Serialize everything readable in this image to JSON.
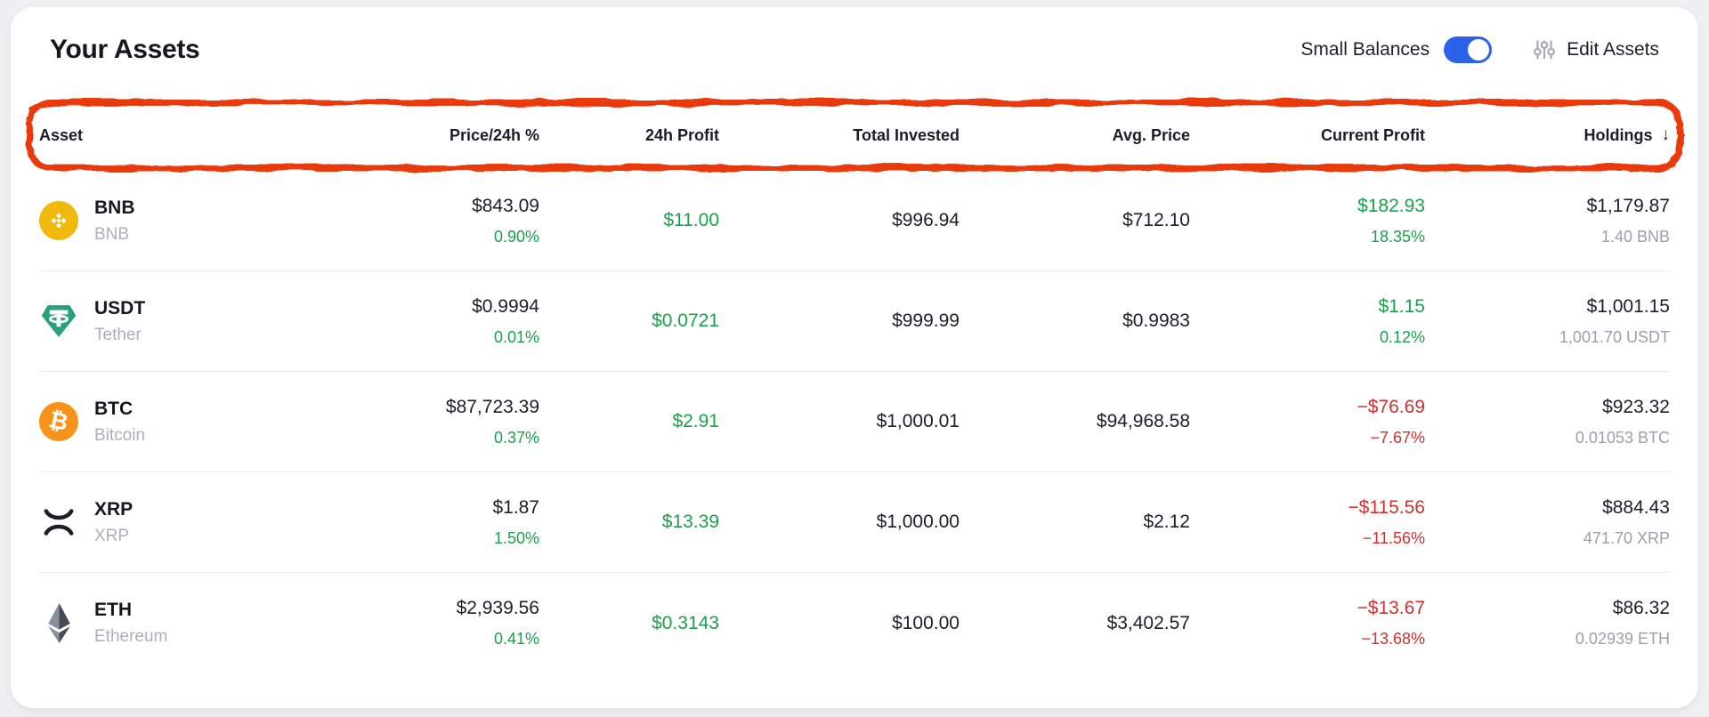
{
  "colors": {
    "green": "#17a34a",
    "red": "#d32f2f",
    "toggle_blue": "#2b63e8",
    "annotation_red": "#ea3a0e",
    "bnb_yellow": "#f0b90b",
    "usdt_teal": "#26a17b",
    "btc_orange": "#f7931a",
    "page_bg": "#eef0f2",
    "card_bg": "#ffffff"
  },
  "header": {
    "title": "Your Assets",
    "small_balances": {
      "label": "Small Balances",
      "state": "on"
    },
    "edit_assets": {
      "label": "Edit Assets",
      "icon": "sliders-icon"
    }
  },
  "annotation": {
    "shape": "hand-drawn-rounded-box",
    "color": "#ea3a0e",
    "target": "table-header-row"
  },
  "table": {
    "headers": [
      {
        "label": "Asset",
        "align": "left"
      },
      {
        "label": "Price/24h %",
        "align": "right"
      },
      {
        "label": "24h Profit",
        "align": "right"
      },
      {
        "label": "Total Invested",
        "align": "right"
      },
      {
        "label": "Avg. Price",
        "align": "right"
      },
      {
        "label": "Current Profit",
        "align": "right"
      },
      {
        "label": "Holdings",
        "align": "right",
        "sorted": true
      }
    ],
    "sort": {
      "column": "Holdings",
      "direction": "desc",
      "arrow": "↓"
    },
    "rows": [
      {
        "icon": "bnb-icon",
        "symbol": "BNB",
        "name": "BNB",
        "price": "$843.09",
        "change_pct": "0.90%",
        "change_dir": "up",
        "profit_24h": "$11.00",
        "profit_24h_dir": "up",
        "total_invested": "$996.94",
        "avg_price": "$712.10",
        "current_profit": "$182.93",
        "current_profit_pct": "18.35%",
        "current_profit_dir": "up",
        "holdings_value": "$1,179.87",
        "holdings_amount": "1.40 BNB"
      },
      {
        "icon": "usdt-icon",
        "symbol": "USDT",
        "name": "Tether",
        "price": "$0.9994",
        "change_pct": "0.01%",
        "change_dir": "up",
        "profit_24h": "$0.0721",
        "profit_24h_dir": "up",
        "total_invested": "$999.99",
        "avg_price": "$0.9983",
        "current_profit": "$1.15",
        "current_profit_pct": "0.12%",
        "current_profit_dir": "up",
        "holdings_value": "$1,001.15",
        "holdings_amount": "1,001.70 USDT"
      },
      {
        "icon": "btc-icon",
        "symbol": "BTC",
        "name": "Bitcoin",
        "price": "$87,723.39",
        "change_pct": "0.37%",
        "change_dir": "up",
        "profit_24h": "$2.91",
        "profit_24h_dir": "up",
        "total_invested": "$1,000.01",
        "avg_price": "$94,968.58",
        "current_profit": "−$76.69",
        "current_profit_pct": "−7.67%",
        "current_profit_dir": "down",
        "holdings_value": "$923.32",
        "holdings_amount": "0.01053 BTC"
      },
      {
        "icon": "xrp-icon",
        "symbol": "XRP",
        "name": "XRP",
        "price": "$1.87",
        "change_pct": "1.50%",
        "change_dir": "up",
        "profit_24h": "$13.39",
        "profit_24h_dir": "up",
        "total_invested": "$1,000.00",
        "avg_price": "$2.12",
        "current_profit": "−$115.56",
        "current_profit_pct": "−11.56%",
        "current_profit_dir": "down",
        "holdings_value": "$884.43",
        "holdings_amount": "471.70 XRP"
      },
      {
        "icon": "eth-icon",
        "symbol": "ETH",
        "name": "Ethereum",
        "price": "$2,939.56",
        "change_pct": "0.41%",
        "change_dir": "up",
        "profit_24h": "$0.3143",
        "profit_24h_dir": "up",
        "total_invested": "$100.00",
        "avg_price": "$3,402.57",
        "current_profit": "−$13.67",
        "current_profit_pct": "−13.68%",
        "current_profit_dir": "down",
        "holdings_value": "$86.32",
        "holdings_amount": "0.02939 ETH"
      }
    ]
  }
}
